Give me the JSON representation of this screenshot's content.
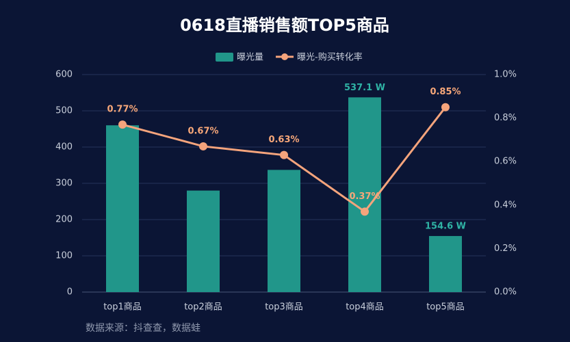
{
  "chart_data": {
    "type": "bar",
    "title": "0618直播销售额TOP5商品",
    "categories": [
      "top1商品",
      "top2商品",
      "top3商品",
      "top4商品",
      "top5商品"
    ],
    "series": [
      {
        "name": "曝光量",
        "type": "bar",
        "color": "#21968a",
        "values": [
          460,
          280,
          337,
          537.1,
          154.6
        ],
        "value_labels": [
          null,
          null,
          null,
          "537.1 W",
          "154.6 W"
        ]
      },
      {
        "name": "曝光-购买转化率",
        "type": "line",
        "axis": "y2",
        "color": "#f5a47c",
        "values": [
          0.77,
          0.67,
          0.63,
          0.37,
          0.85
        ],
        "value_labels": [
          "0.77%",
          "0.67%",
          "0.63%",
          "0.37%",
          "0.85%"
        ]
      }
    ],
    "ylim": [
      0,
      600
    ],
    "yticks": [
      0,
      100,
      200,
      300,
      400,
      500,
      600
    ],
    "y2lim": [
      0,
      1.0
    ],
    "y2ticks": [
      {
        "value": 0,
        "label": "0.0%"
      },
      {
        "value": 0.2,
        "label": "0.2%"
      },
      {
        "value": 0.4,
        "label": "0.4%"
      },
      {
        "value": 0.6,
        "label": "0.6%"
      },
      {
        "value": 0.8,
        "label": "0.8%"
      },
      {
        "value": 1.0,
        "label": "1.0%"
      }
    ],
    "grid": true,
    "legend": "top",
    "source": "数据来源：抖查查，数据蛙"
  }
}
